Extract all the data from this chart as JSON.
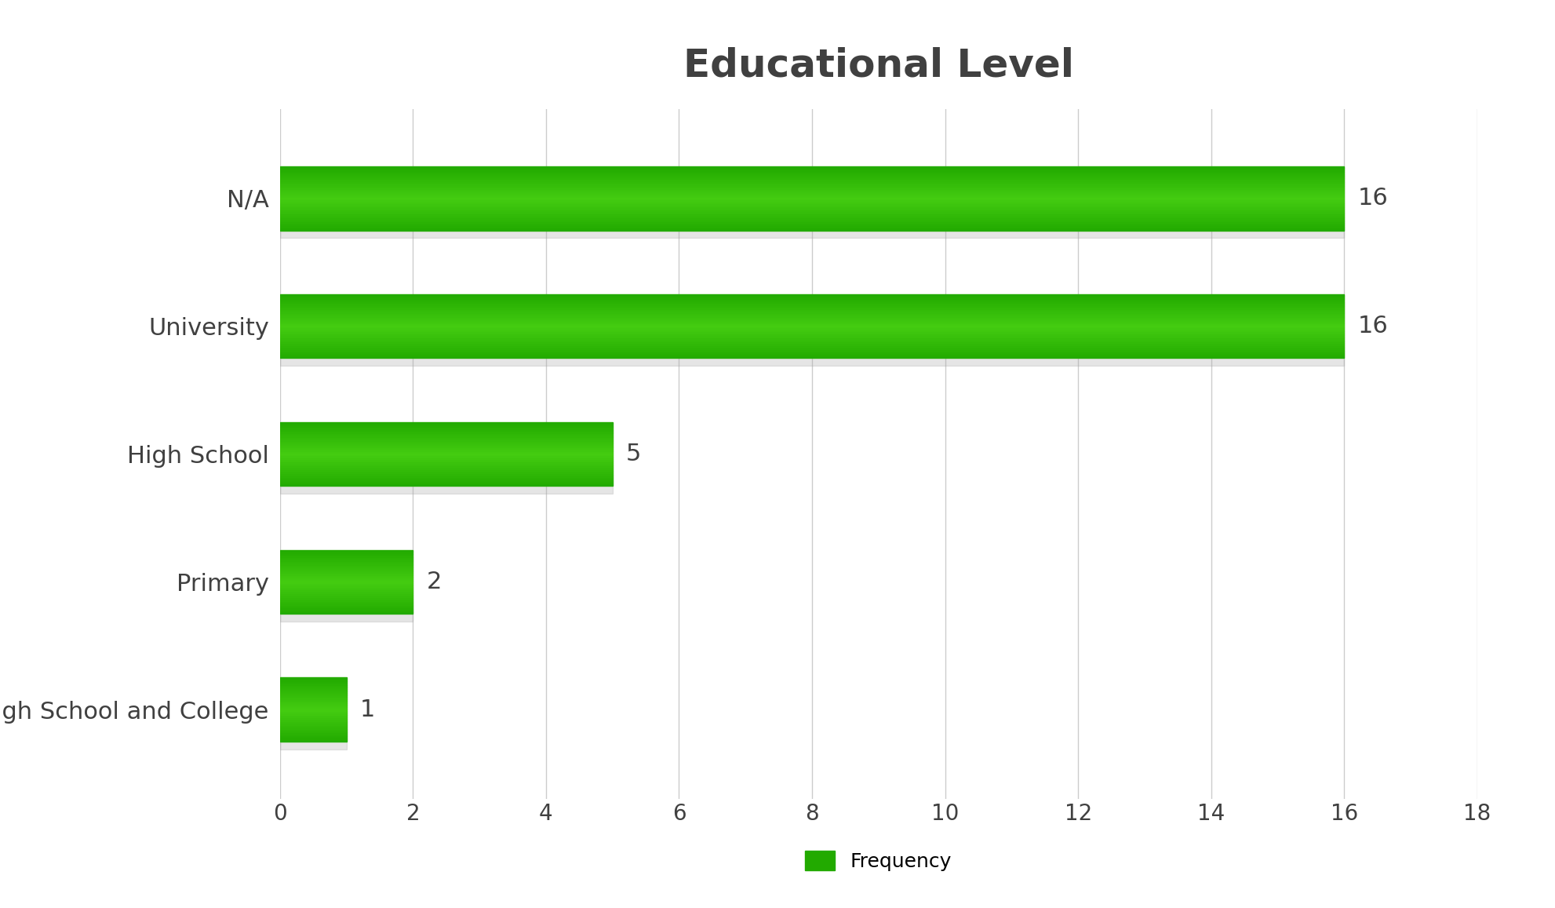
{
  "title": "Educational Level",
  "categories": [
    "High School and College",
    "Primary",
    "High School",
    "University",
    "N/A"
  ],
  "values": [
    1,
    2,
    5,
    16,
    16
  ],
  "bar_color": "#22AA00",
  "bar_color_light": "#44CC11",
  "shadow_color": "#AAAAAA",
  "value_labels": [
    "1",
    "2",
    "5",
    "16",
    "16"
  ],
  "xlim": [
    0,
    18
  ],
  "xticks": [
    0,
    2,
    4,
    6,
    8,
    10,
    12,
    14,
    16,
    18
  ],
  "grid_color": "#CCCCCC",
  "background_color": "#FFFFFF",
  "title_fontsize": 36,
  "tick_fontsize": 20,
  "label_fontsize": 22,
  "annotation_fontsize": 22,
  "legend_label": "Frequency",
  "legend_fontsize": 18,
  "title_color": "#404040",
  "tick_color": "#404040"
}
